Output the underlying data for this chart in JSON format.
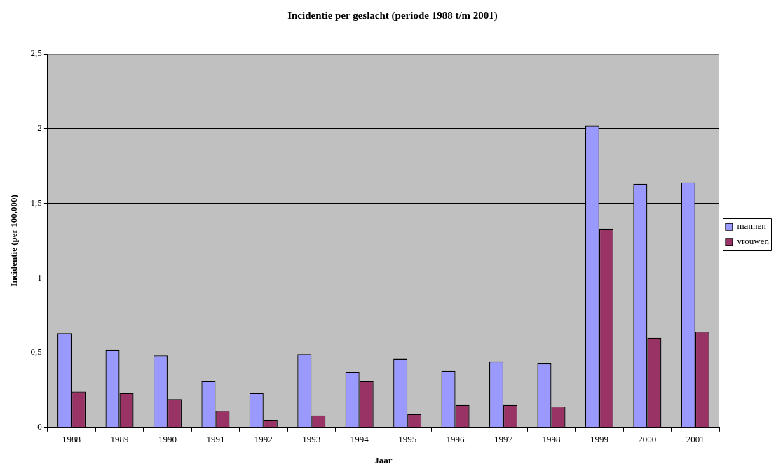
{
  "chart_data": {
    "type": "bar",
    "title": "Incidentie per geslacht (periode 1988 t/m 2001)",
    "xlabel": "Jaar",
    "ylabel": "Incidentie (per 100.000)",
    "categories": [
      "1988",
      "1989",
      "1990",
      "1991",
      "1992",
      "1993",
      "1994",
      "1995",
      "1996",
      "1997",
      "1998",
      "1999",
      "2000",
      "2001"
    ],
    "series": [
      {
        "name": "mannen",
        "color": "#9999ff",
        "values": [
          0.63,
          0.52,
          0.48,
          0.31,
          0.23,
          0.49,
          0.37,
          0.46,
          0.38,
          0.44,
          0.43,
          2.02,
          1.63,
          1.64
        ]
      },
      {
        "name": "vrouwen",
        "color": "#993366",
        "values": [
          0.24,
          0.23,
          0.19,
          0.11,
          0.05,
          0.08,
          0.31,
          0.09,
          0.15,
          0.15,
          0.14,
          1.33,
          0.6,
          0.64
        ]
      }
    ],
    "ylim": [
      0,
      2.5
    ],
    "yticks": [
      0,
      {
        "value": 0.5,
        "label": "0,5"
      },
      1,
      {
        "value": 1.5,
        "label": "1,5"
      },
      2,
      {
        "value": 2.5,
        "label": "2,5"
      }
    ],
    "grid": "y",
    "legend": "right"
  }
}
